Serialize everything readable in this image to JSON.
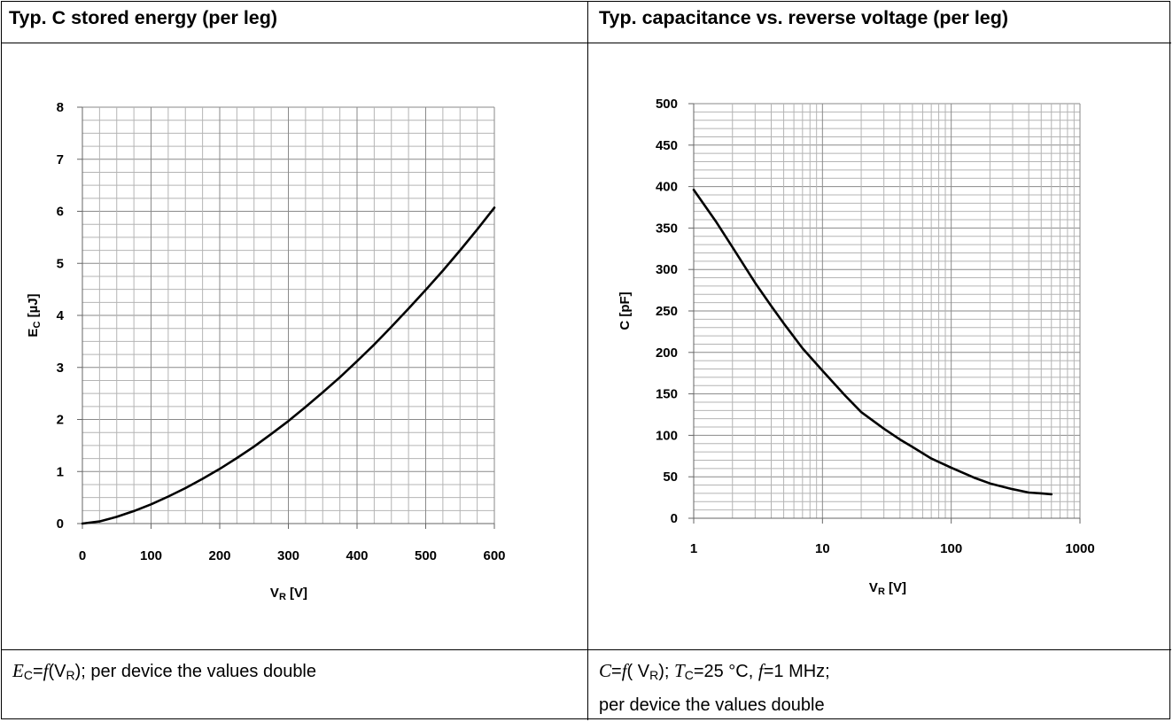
{
  "header": {
    "left_title": "Typ. C stored energy (per leg)",
    "right_title": "Typ. capacitance vs. reverse voltage (per leg)"
  },
  "captions": {
    "left": {
      "var": "E",
      "var_sub": "C",
      "eq": "=",
      "func": "f",
      "open": "(V",
      "arg_sub": "R",
      "rest": "); per device the values double"
    },
    "right": {
      "var": "C",
      "eq": "=",
      "func": "f",
      "open": "( V",
      "arg_sub": "R",
      "mid": "); ",
      "temp_var": "T",
      "temp_sub": "C",
      "temp_rest": "=25 °C, ",
      "freq_var": "f",
      "freq_rest": "=1 MHz;",
      "line2": "per device the values  double"
    }
  },
  "chart_data": [
    {
      "type": "line",
      "title": "Typ. C stored energy (per leg)",
      "xlabel_main": "V",
      "xlabel_sub": "R",
      "xlabel_rest": " [V]",
      "ylabel_main": "E",
      "ylabel_sub": "C",
      "ylabel_rest": " [µJ]",
      "xlim": [
        0,
        600
      ],
      "ylim": [
        0,
        8
      ],
      "x_ticks": [
        0,
        100,
        200,
        300,
        400,
        500,
        600
      ],
      "y_ticks": [
        0,
        1,
        2,
        3,
        4,
        5,
        6,
        7,
        8
      ],
      "x_scale": "linear",
      "y_scale": "linear",
      "grid": true,
      "series": [
        {
          "x": [
            0,
            25,
            50,
            75,
            100,
            125,
            150,
            175,
            200,
            225,
            250,
            275,
            300,
            325,
            350,
            375,
            400,
            425,
            450,
            475,
            500,
            525,
            550,
            575,
            600
          ],
          "y": [
            0,
            0.04,
            0.13,
            0.24,
            0.37,
            0.52,
            0.68,
            0.86,
            1.05,
            1.26,
            1.48,
            1.72,
            1.97,
            2.24,
            2.52,
            2.81,
            3.12,
            3.44,
            3.78,
            4.13,
            4.49,
            4.86,
            5.25,
            5.65,
            6.07
          ],
          "color": "#000000"
        }
      ]
    },
    {
      "type": "line",
      "title": "Typ. capacitance vs. reverse voltage (per leg)",
      "xlabel_main": "V",
      "xlabel_sub": "R",
      "xlabel_rest": " [V]",
      "ylabel": "C [pF]",
      "xlim": [
        1,
        1000
      ],
      "ylim": [
        0,
        500
      ],
      "x_ticks": [
        1,
        10,
        100,
        1000
      ],
      "y_ticks": [
        0,
        50,
        100,
        150,
        200,
        250,
        300,
        350,
        400,
        450,
        500
      ],
      "x_scale": "log",
      "y_scale": "linear",
      "grid": true,
      "series": [
        {
          "x": [
            1,
            1.5,
            2,
            3,
            4,
            5,
            7,
            10,
            15,
            20,
            30,
            40,
            50,
            70,
            100,
            150,
            200,
            300,
            400,
            500,
            600
          ],
          "y": [
            396,
            357,
            327,
            284,
            256,
            235,
            205,
            178,
            148,
            128,
            108,
            95,
            86,
            72,
            61,
            49,
            42,
            35,
            31,
            30,
            29
          ],
          "color": "#000000"
        }
      ]
    }
  ]
}
